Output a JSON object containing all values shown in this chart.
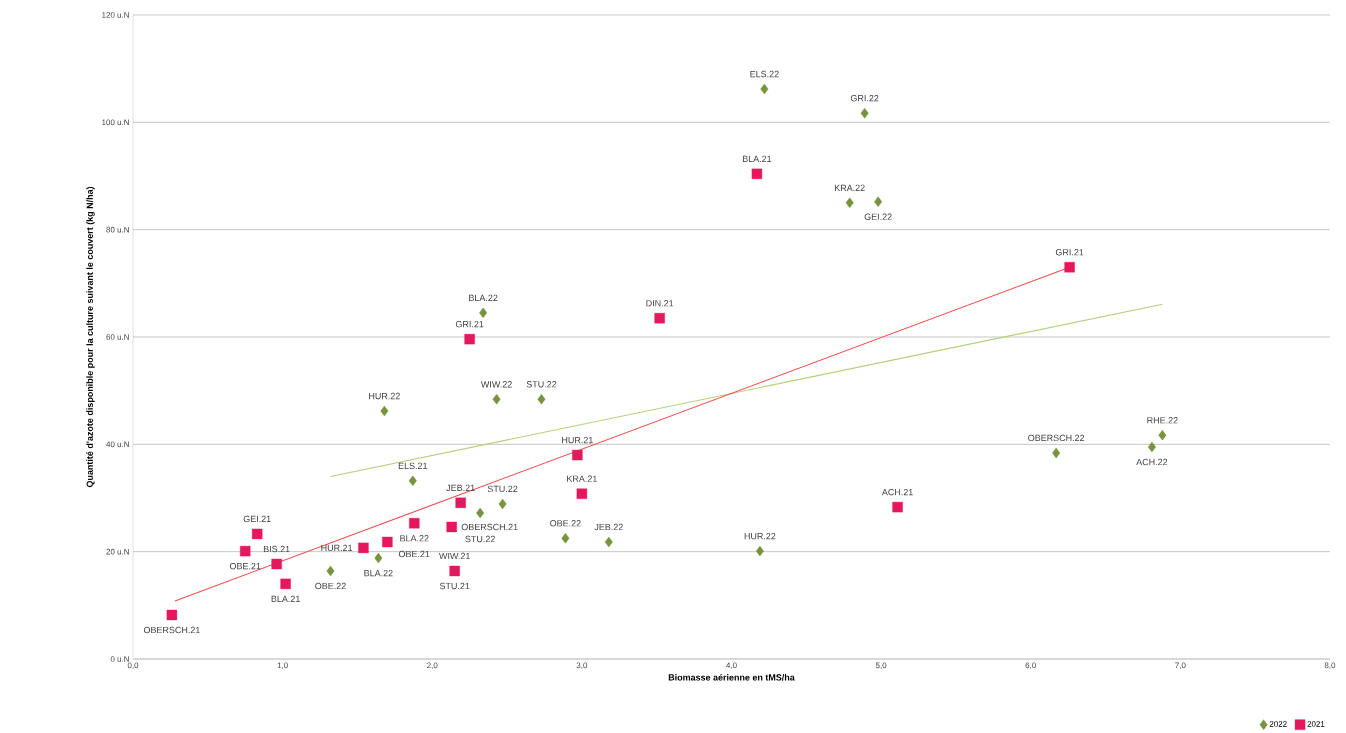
{
  "chart_data": {
    "type": "scatter",
    "xlabel": "Biomasse aérienne en tMS/ha",
    "ylabel": "Quantité d'azote disponible pour la culture suivant le couvert  (kg N/ha)",
    "xlim": [
      0,
      8
    ],
    "ylim": [
      0,
      120
    ],
    "xticks": [
      {
        "value": 0,
        "label": "0,0"
      },
      {
        "value": 1,
        "label": "1,0"
      },
      {
        "value": 2,
        "label": "2,0"
      },
      {
        "value": 3,
        "label": "3,0"
      },
      {
        "value": 4,
        "label": "4,0"
      },
      {
        "value": 5,
        "label": "5,0"
      },
      {
        "value": 6,
        "label": "6,0"
      },
      {
        "value": 7,
        "label": "7,0"
      },
      {
        "value": 8,
        "label": "8,0"
      }
    ],
    "yticks": [
      {
        "value": 0,
        "label": "0 u.N"
      },
      {
        "value": 20,
        "label": "20 u.N"
      },
      {
        "value": 40,
        "label": "40 u.N"
      },
      {
        "value": 60,
        "label": "60 u.N"
      },
      {
        "value": 80,
        "label": "80 u.N"
      },
      {
        "value": 100,
        "label": "100 u.N"
      },
      {
        "value": 120,
        "label": "120 u.N"
      }
    ],
    "grid": "y",
    "legend": "bottom right",
    "series": [
      {
        "name": "2022",
        "marker": "diamond",
        "color": "#77933c",
        "x": [
          4.22,
          4.89,
          4.79,
          4.98,
          2.34,
          1.68,
          2.43,
          2.73,
          1.87,
          2.47,
          2.32,
          2.89,
          3.18,
          1.64,
          1.32,
          4.19,
          6.17,
          6.81,
          6.88
        ],
        "values": [
          106.2,
          101.7,
          85.0,
          85.2,
          64.5,
          46.2,
          48.4,
          48.4,
          33.2,
          28.9,
          27.2,
          22.5,
          21.8,
          18.8,
          16.4,
          20.1,
          38.4,
          39.5,
          41.7
        ]
      },
      {
        "name": "2021",
        "marker": "square",
        "color": "#e4185c",
        "x": [
          0.26,
          0.75,
          0.83,
          0.96,
          1.02,
          1.54,
          1.7,
          1.88,
          2.13,
          2.19,
          2.15,
          2.97,
          3.0,
          5.11,
          2.25,
          3.52,
          4.17,
          6.26
        ],
        "values": [
          8.2,
          20.1,
          23.3,
          17.7,
          14.0,
          20.7,
          21.8,
          25.3,
          24.6,
          29.1,
          16.4,
          38.0,
          30.8,
          28.3,
          59.6,
          63.5,
          90.4,
          73.0
        ]
      },
      {
        "type": "line",
        "marker": "none",
        "line_style": "solid",
        "color": "#b5cf7a",
        "x": [
          1.32,
          6.88
        ],
        "values": [
          34.0,
          66.1
        ]
      },
      {
        "type": "line",
        "marker": "none",
        "line_style": "solid",
        "color": "#f04848",
        "x": [
          0.28,
          6.26
        ],
        "values": [
          10.8,
          73.0
        ]
      }
    ],
    "annotations": [
      {
        "text": "ELS.22",
        "x": 4.22,
        "y": 106.2
      },
      {
        "text": "GRI.22",
        "x": 4.89,
        "y": 101.7
      },
      {
        "text": "BLA.21",
        "x": 4.17,
        "y": 90.4
      },
      {
        "text": "KRA.22",
        "x": 4.79,
        "y": 85.0
      },
      {
        "text": "GEI.22",
        "x": 4.98,
        "y": 85.2
      },
      {
        "text": "GRI.21",
        "x": 6.26,
        "y": 73.0
      },
      {
        "text": "BLA.22",
        "x": 2.34,
        "y": 64.5
      },
      {
        "text": "DIN.21",
        "x": 3.52,
        "y": 63.5
      },
      {
        "text": "GRI.21",
        "x": 2.25,
        "y": 59.6
      },
      {
        "text": "HUR.22",
        "x": 1.68,
        "y": 46.2
      },
      {
        "text": "WIW.22",
        "x": 2.43,
        "y": 48.4
      },
      {
        "text": "STU.22",
        "x": 2.73,
        "y": 48.4
      },
      {
        "text": "OBERSCH.22",
        "x": 6.17,
        "y": 38.4
      },
      {
        "text": "RHE.22",
        "x": 6.88,
        "y": 41.7
      },
      {
        "text": "HUR.21",
        "x": 2.97,
        "y": 38.0
      },
      {
        "text": "ACH.22",
        "x": 6.81,
        "y": 39.5
      },
      {
        "text": "ELS.21",
        "x": 1.87,
        "y": 33.2
      },
      {
        "text": "KRA.21",
        "x": 3.0,
        "y": 30.8
      },
      {
        "text": "JEB.21",
        "x": 2.19,
        "y": 29.1
      },
      {
        "text": "ACH.21",
        "x": 5.11,
        "y": 28.3
      },
      {
        "text": "STU.22",
        "x": 2.47,
        "y": 28.9
      },
      {
        "text": "BLA.22",
        "x": 1.88,
        "y": 25.3
      },
      {
        "text": "GEI.21",
        "x": 0.83,
        "y": 23.3
      },
      {
        "text": "OBERSCH.21",
        "x": 2.13,
        "y": 24.6
      },
      {
        "text": "OBE.22",
        "x": 2.89,
        "y": 22.5
      },
      {
        "text": "OBE.21",
        "x": 1.7,
        "y": 21.8
      },
      {
        "text": "STU.22",
        "x": 2.32,
        "y": 27.2
      },
      {
        "text": "HUR.21",
        "x": 1.54,
        "y": 20.7
      },
      {
        "text": "HUR.22",
        "x": 4.19,
        "y": 20.1
      },
      {
        "text": "OBE.21",
        "x": 0.75,
        "y": 20.1
      },
      {
        "text": "WIW.21",
        "x": 2.15,
        "y": 16.4
      },
      {
        "text": "JEB.22",
        "x": 3.18,
        "y": 21.8
      },
      {
        "text": "BIS.21",
        "x": 0.96,
        "y": 17.7
      },
      {
        "text": "BLA.22",
        "x": 1.64,
        "y": 18.8
      },
      {
        "text": "OBE.22",
        "x": 1.32,
        "y": 16.4
      },
      {
        "text": "OBERSCH.21",
        "x": 0.26,
        "y": 8.2
      },
      {
        "text": "BLA.21",
        "x": 1.02,
        "y": 14.0
      },
      {
        "text": "STU.21",
        "x": 2.15,
        "y": 16.4
      }
    ]
  }
}
